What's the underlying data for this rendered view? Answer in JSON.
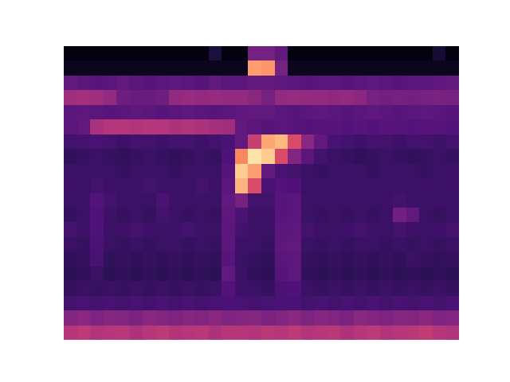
{
  "chart_data": {
    "type": "heatmap",
    "tick_labels": false,
    "zlim": [
      0,
      1
    ],
    "cells": [
      [
        0.02,
        0.02,
        0.02,
        0.02,
        0.02,
        0.02,
        0.02,
        0.02,
        0.02,
        0.02,
        0.02,
        0.12,
        0.02,
        0.02,
        0.35,
        0.35,
        0.3,
        0.02,
        0.02,
        0.02,
        0.02,
        0.02,
        0.02,
        0.02,
        0.02,
        0.02,
        0.02,
        0.02,
        0.1,
        0.02
      ],
      [
        0.05,
        0.05,
        0.05,
        0.05,
        0.05,
        0.05,
        0.05,
        0.05,
        0.05,
        0.05,
        0.05,
        0.05,
        0.05,
        0.05,
        0.8,
        0.78,
        0.35,
        0.05,
        0.05,
        0.05,
        0.05,
        0.05,
        0.05,
        0.05,
        0.05,
        0.05,
        0.05,
        0.05,
        0.05,
        0.05
      ],
      [
        0.3,
        0.28,
        0.27,
        0.28,
        0.3,
        0.28,
        0.27,
        0.28,
        0.29,
        0.28,
        0.27,
        0.3,
        0.28,
        0.28,
        0.3,
        0.3,
        0.29,
        0.28,
        0.27,
        0.28,
        0.28,
        0.27,
        0.28,
        0.29,
        0.28,
        0.27,
        0.28,
        0.28,
        0.29,
        0.3
      ],
      [
        0.45,
        0.46,
        0.45,
        0.42,
        0.33,
        0.32,
        0.32,
        0.33,
        0.42,
        0.43,
        0.42,
        0.43,
        0.42,
        0.42,
        0.4,
        0.35,
        0.42,
        0.43,
        0.42,
        0.42,
        0.41,
        0.42,
        0.4,
        0.35,
        0.34,
        0.35,
        0.34,
        0.35,
        0.36,
        0.35
      ],
      [
        0.28,
        0.29,
        0.28,
        0.27,
        0.28,
        0.29,
        0.28,
        0.27,
        0.28,
        0.29,
        0.28,
        0.27,
        0.28,
        0.29,
        0.3,
        0.3,
        0.28,
        0.27,
        0.28,
        0.29,
        0.28,
        0.27,
        0.28,
        0.29,
        0.28,
        0.27,
        0.28,
        0.29,
        0.28,
        0.27
      ],
      [
        0.28,
        0.3,
        0.47,
        0.5,
        0.5,
        0.49,
        0.5,
        0.5,
        0.48,
        0.49,
        0.48,
        0.46,
        0.45,
        0.3,
        0.28,
        0.27,
        0.28,
        0.27,
        0.26,
        0.27,
        0.27,
        0.26,
        0.27,
        0.26,
        0.27,
        0.27,
        0.26,
        0.27,
        0.27,
        0.26
      ],
      [
        0.22,
        0.22,
        0.23,
        0.22,
        0.21,
        0.22,
        0.22,
        0.21,
        0.22,
        0.22,
        0.21,
        0.22,
        0.24,
        0.3,
        0.55,
        0.82,
        0.86,
        0.6,
        0.4,
        0.3,
        0.23,
        0.22,
        0.21,
        0.22,
        0.22,
        0.21,
        0.22,
        0.22,
        0.21,
        0.22
      ],
      [
        0.18,
        0.19,
        0.2,
        0.19,
        0.18,
        0.19,
        0.2,
        0.19,
        0.18,
        0.19,
        0.2,
        0.19,
        0.25,
        0.75,
        0.95,
        0.9,
        0.6,
        0.38,
        0.28,
        0.22,
        0.2,
        0.19,
        0.18,
        0.19,
        0.2,
        0.19,
        0.18,
        0.19,
        0.2,
        0.19
      ],
      [
        0.2,
        0.2,
        0.21,
        0.2,
        0.19,
        0.2,
        0.21,
        0.2,
        0.19,
        0.2,
        0.21,
        0.2,
        0.27,
        0.9,
        0.8,
        0.3,
        0.24,
        0.22,
        0.2,
        0.19,
        0.2,
        0.21,
        0.2,
        0.19,
        0.2,
        0.21,
        0.2,
        0.19,
        0.2,
        0.21
      ],
      [
        0.21,
        0.2,
        0.22,
        0.21,
        0.2,
        0.21,
        0.22,
        0.2,
        0.21,
        0.2,
        0.22,
        0.21,
        0.28,
        0.85,
        0.6,
        0.24,
        0.26,
        0.25,
        0.2,
        0.21,
        0.2,
        0.21,
        0.2,
        0.21,
        0.2,
        0.21,
        0.2,
        0.21,
        0.2,
        0.21
      ],
      [
        0.2,
        0.21,
        0.26,
        0.22,
        0.2,
        0.21,
        0.2,
        0.24,
        0.21,
        0.2,
        0.21,
        0.2,
        0.3,
        0.35,
        0.22,
        0.22,
        0.27,
        0.28,
        0.21,
        0.2,
        0.21,
        0.2,
        0.21,
        0.2,
        0.21,
        0.22,
        0.21,
        0.2,
        0.21,
        0.2
      ],
      [
        0.19,
        0.2,
        0.25,
        0.21,
        0.19,
        0.2,
        0.19,
        0.22,
        0.2,
        0.19,
        0.2,
        0.19,
        0.29,
        0.24,
        0.2,
        0.21,
        0.27,
        0.28,
        0.2,
        0.19,
        0.2,
        0.19,
        0.2,
        0.19,
        0.2,
        0.34,
        0.3,
        0.2,
        0.19,
        0.2
      ],
      [
        0.22,
        0.21,
        0.25,
        0.2,
        0.21,
        0.22,
        0.21,
        0.2,
        0.21,
        0.22,
        0.21,
        0.2,
        0.28,
        0.22,
        0.21,
        0.2,
        0.28,
        0.29,
        0.22,
        0.21,
        0.2,
        0.21,
        0.22,
        0.21,
        0.2,
        0.22,
        0.21,
        0.2,
        0.21,
        0.22
      ],
      [
        0.2,
        0.19,
        0.24,
        0.2,
        0.19,
        0.2,
        0.19,
        0.2,
        0.2,
        0.19,
        0.2,
        0.19,
        0.28,
        0.21,
        0.2,
        0.19,
        0.29,
        0.3,
        0.2,
        0.19,
        0.2,
        0.19,
        0.2,
        0.2,
        0.19,
        0.2,
        0.19,
        0.2,
        0.19,
        0.2
      ],
      [
        0.18,
        0.19,
        0.23,
        0.18,
        0.19,
        0.18,
        0.19,
        0.18,
        0.19,
        0.18,
        0.19,
        0.18,
        0.27,
        0.2,
        0.19,
        0.18,
        0.28,
        0.29,
        0.19,
        0.18,
        0.19,
        0.18,
        0.19,
        0.18,
        0.19,
        0.18,
        0.2,
        0.19,
        0.18,
        0.19
      ],
      [
        0.17,
        0.18,
        0.2,
        0.17,
        0.18,
        0.17,
        0.18,
        0.17,
        0.18,
        0.17,
        0.18,
        0.17,
        0.3,
        0.2,
        0.18,
        0.17,
        0.27,
        0.29,
        0.18,
        0.17,
        0.18,
        0.17,
        0.18,
        0.17,
        0.18,
        0.17,
        0.18,
        0.17,
        0.18,
        0.17
      ],
      [
        0.19,
        0.2,
        0.19,
        0.2,
        0.19,
        0.2,
        0.19,
        0.2,
        0.19,
        0.2,
        0.19,
        0.2,
        0.26,
        0.21,
        0.2,
        0.19,
        0.24,
        0.25,
        0.2,
        0.19,
        0.2,
        0.19,
        0.2,
        0.19,
        0.2,
        0.19,
        0.2,
        0.19,
        0.2,
        0.19
      ],
      [
        0.22,
        0.23,
        0.22,
        0.23,
        0.22,
        0.23,
        0.22,
        0.23,
        0.22,
        0.23,
        0.22,
        0.23,
        0.24,
        0.23,
        0.22,
        0.23,
        0.24,
        0.24,
        0.22,
        0.23,
        0.22,
        0.23,
        0.22,
        0.23,
        0.22,
        0.23,
        0.22,
        0.23,
        0.22,
        0.23
      ],
      [
        0.38,
        0.4,
        0.37,
        0.39,
        0.38,
        0.36,
        0.4,
        0.38,
        0.37,
        0.39,
        0.38,
        0.4,
        0.37,
        0.38,
        0.39,
        0.36,
        0.38,
        0.4,
        0.37,
        0.39,
        0.38,
        0.36,
        0.4,
        0.38,
        0.37,
        0.39,
        0.38,
        0.4,
        0.37,
        0.38
      ],
      [
        0.5,
        0.52,
        0.49,
        0.5,
        0.51,
        0.48,
        0.5,
        0.52,
        0.49,
        0.5,
        0.51,
        0.48,
        0.5,
        0.5,
        0.49,
        0.51,
        0.5,
        0.52,
        0.49,
        0.5,
        0.51,
        0.48,
        0.5,
        0.52,
        0.49,
        0.5,
        0.51,
        0.53,
        0.5,
        0.49
      ]
    ]
  }
}
